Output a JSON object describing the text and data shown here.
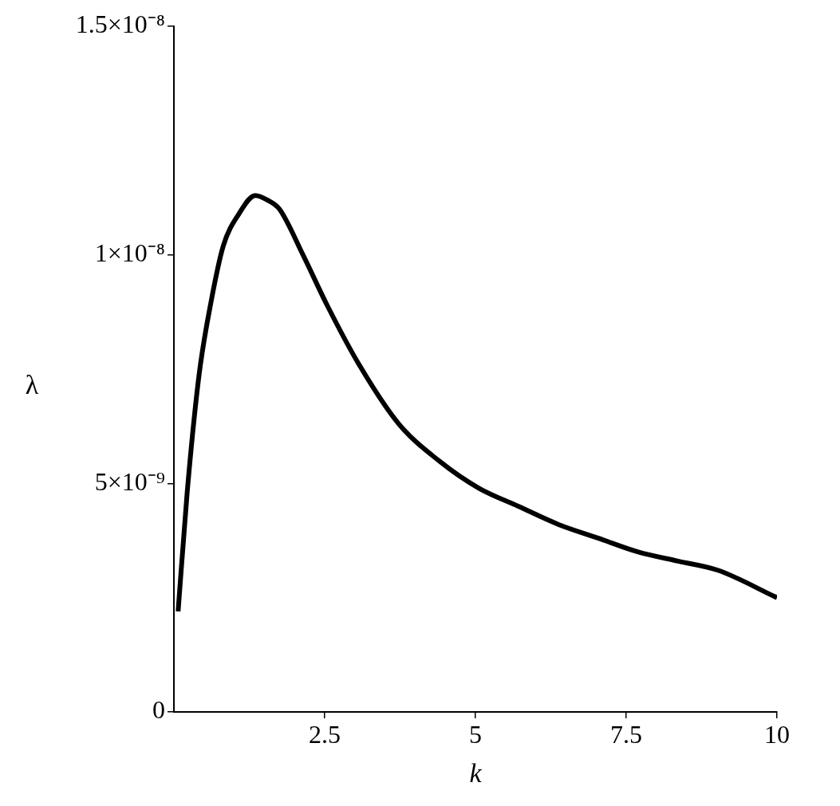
{
  "chart_data": {
    "type": "line",
    "xlabel": "k",
    "ylabel": "λ",
    "color": "#000000",
    "x": [
      0.07,
      0.22,
      0.42,
      0.62,
      0.82,
      1.08,
      1.35,
      1.55,
      1.75,
      2.14,
      2.54,
      3.07,
      3.73,
      4.39,
      5.05,
      5.71,
      6.38,
      7.04,
      7.7,
      8.36,
      9.02,
      10
    ],
    "values": [
      2.2e-09,
      4.8e-09,
      7.4e-09,
      9e-09,
      1.02e-08,
      1.09e-08,
      1.13e-08,
      1.12e-08,
      1.1e-08,
      1e-08,
      8.9e-09,
      7.6e-09,
      6.3e-09,
      5.5e-09,
      4.9e-09,
      4.5e-09,
      4.1e-09,
      3.8e-09,
      3.5e-09,
      3.3e-09,
      3.1e-09,
      2.5e-09
    ],
    "xlim": [
      0,
      10
    ],
    "xticks": [
      2.5,
      5,
      7.5,
      10
    ],
    "ylim": [
      0,
      1.5e-08
    ],
    "yticks": [
      0,
      {
        "value": 5e-09,
        "label": "5×10⁻⁹"
      },
      {
        "value": 1e-08,
        "label": "1×10⁻⁸"
      },
      {
        "value": 1.5e-08,
        "label": "1.5×10⁻⁸"
      }
    ],
    "grid": false,
    "legend": false,
    "marker": "none",
    "line_style": "solid"
  }
}
